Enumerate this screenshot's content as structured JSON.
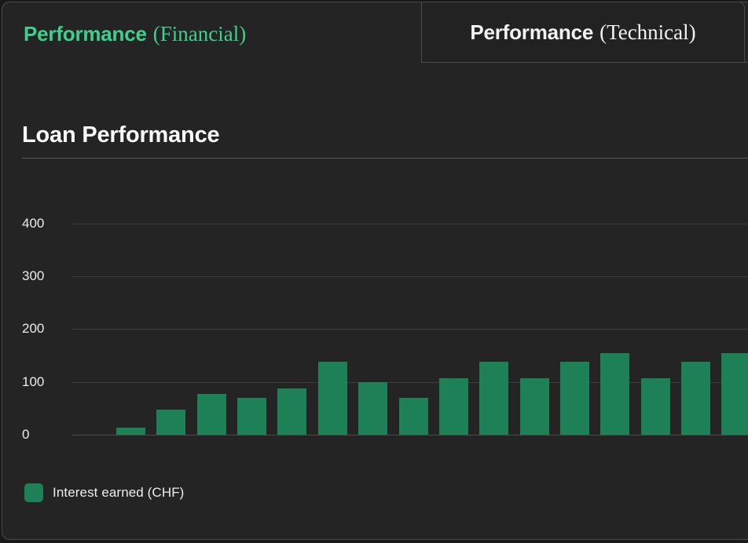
{
  "tabs": {
    "financial": {
      "main": "Performance",
      "paren": "(Financial)",
      "active": true
    },
    "technical": {
      "main": "Performance",
      "paren": "(Technical)",
      "active": false
    }
  },
  "section": {
    "title": "Loan Performance"
  },
  "chart_data": {
    "type": "bar",
    "title": "Loan Performance",
    "xlabel": "",
    "ylabel": "",
    "ylim": [
      0,
      400
    ],
    "yticks": [
      0,
      100,
      200,
      300,
      400
    ],
    "grid": true,
    "x_axis_labels_visible": false,
    "bar_color": "#1d8057",
    "series": [
      {
        "name": "Interest earned (CHF)",
        "values": [
          13,
          48,
          78,
          70,
          88,
          138,
          100,
          70,
          107,
          138,
          107,
          138,
          154,
          107,
          138,
          154
        ]
      }
    ],
    "legend": {
      "position": "bottom-left",
      "label": "Interest earned (CHF)",
      "swatch_color": "#1d8057"
    }
  },
  "colors": {
    "outer_background": "#191919",
    "panel_background": "#242424",
    "border": "#4a4a4a",
    "gridline": "#3c3c3c",
    "title_rule": "#585858",
    "accent_green_text": "#3ecf8e",
    "bar_green": "#1d8057",
    "text_primary": "#f5f5f5"
  }
}
